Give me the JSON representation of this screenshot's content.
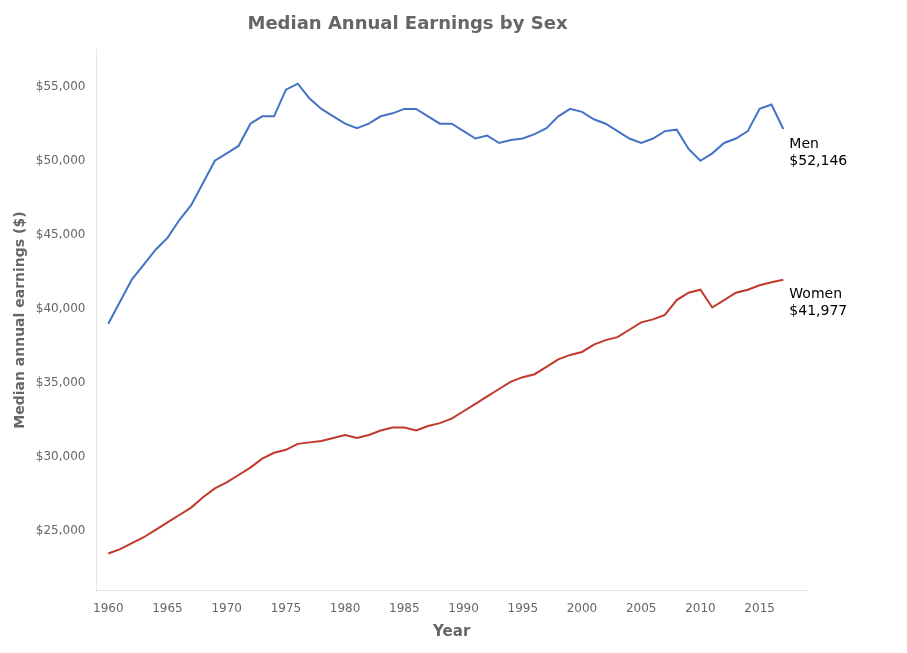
{
  "chart_data": {
    "type": "line",
    "title": "Median Annual Earnings by Sex",
    "xlabel": "Year",
    "ylabel": "Median annual earnings ($)",
    "x": [
      1960,
      1961,
      1962,
      1963,
      1964,
      1965,
      1966,
      1967,
      1968,
      1969,
      1970,
      1971,
      1972,
      1973,
      1974,
      1975,
      1976,
      1977,
      1978,
      1979,
      1980,
      1981,
      1982,
      1983,
      1984,
      1985,
      1986,
      1987,
      1988,
      1989,
      1990,
      1991,
      1992,
      1993,
      1994,
      1995,
      1996,
      1997,
      1998,
      1999,
      2000,
      2001,
      2002,
      2003,
      2004,
      2005,
      2006,
      2007,
      2008,
      2009,
      2010,
      2011,
      2012,
      2013,
      2014,
      2015,
      2016,
      2017
    ],
    "series": [
      {
        "name": "Men\n$52,146",
        "color": "#4472C4",
        "values": [
          39000,
          40500,
          42000,
          43000,
          44000,
          44800,
          46000,
          47000,
          48500,
          50000,
          50500,
          51000,
          52500,
          53000,
          53000,
          54800,
          55200,
          54200,
          53500,
          53000,
          52500,
          52200,
          52500,
          53000,
          53200,
          53500,
          53500,
          53000,
          52500,
          52500,
          52000,
          51500,
          51700,
          51200,
          51400,
          51500,
          51800,
          52200,
          53000,
          53500,
          53300,
          52800,
          52500,
          52000,
          51500,
          51200,
          51500,
          52000,
          52100,
          50800,
          50000,
          50500,
          51200,
          51500,
          52000,
          53500,
          53800,
          52146
        ]
      },
      {
        "name": "Women\n$41,977",
        "color": "#C0392B",
        "values": [
          23500,
          23800,
          24200,
          24600,
          25100,
          25600,
          26100,
          26600,
          27300,
          27900,
          28300,
          28800,
          29300,
          29900,
          30300,
          30500,
          30900,
          31000,
          31100,
          31300,
          31500,
          31300,
          31500,
          31800,
          32000,
          32000,
          31800,
          32100,
          32300,
          32600,
          33100,
          33600,
          34100,
          34600,
          35100,
          35400,
          35600,
          36100,
          36600,
          36900,
          37100,
          37600,
          37900,
          38100,
          38600,
          39100,
          39300,
          39600,
          40600,
          41100,
          41300,
          40100,
          40600,
          41100,
          41300,
          41600,
          41800,
          41977
        ]
      }
    ],
    "xlim": [
      1959,
      2019
    ],
    "xticks": [
      1960,
      1965,
      1970,
      1975,
      1980,
      1985,
      1990,
      1995,
      2000,
      2005,
      2010,
      2015
    ],
    "ylim": [
      21000,
      57500
    ],
    "yticks": [
      {
        "value": 25000,
        "label": "$25,000"
      },
      {
        "value": 30000,
        "label": "$30,000"
      },
      {
        "value": 35000,
        "label": "$35,000"
      },
      {
        "value": 40000,
        "label": "$40,000"
      },
      {
        "value": 45000,
        "label": "$45,000"
      },
      {
        "value": 50000,
        "label": "$50,000"
      },
      {
        "value": 55000,
        "label": "$55,000"
      }
    ],
    "grid": false,
    "legend": false
  }
}
